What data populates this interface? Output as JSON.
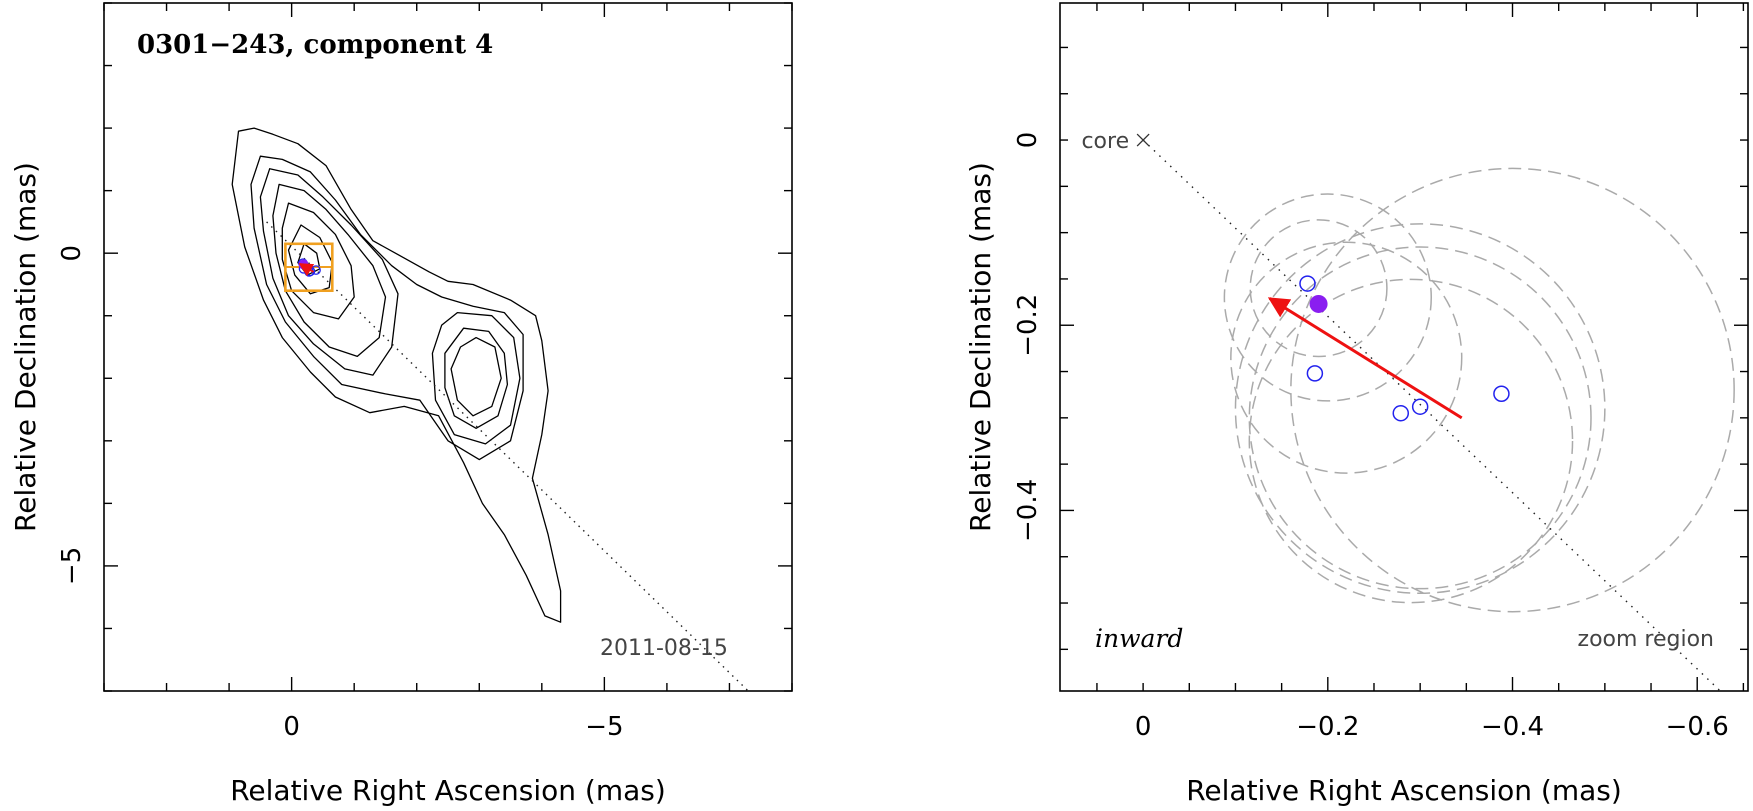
{
  "chart_data": [
    {
      "type": "contour",
      "title": "0301−243, component 4",
      "xlabel": "Relative Right Ascension (mas)",
      "ylabel": "Relative Declination (mas)",
      "xlim": [
        3.0,
        -8.0
      ],
      "ylim": [
        -7.0,
        4.0
      ],
      "xticks": [
        {
          "v": 0,
          "label": "0"
        },
        {
          "v": -5,
          "label": "−5"
        }
      ],
      "yticks": [
        {
          "v": 0,
          "label": "0"
        },
        {
          "v": -5,
          "label": "−5"
        }
      ],
      "minor_step": 1,
      "date": "2011-08-15",
      "contours": [
        [
          [
            0.85,
            1.95
          ],
          [
            0.6,
            2.0
          ],
          [
            0.3,
            1.9
          ],
          [
            -0.1,
            1.75
          ],
          [
            -0.55,
            1.4
          ],
          [
            -0.95,
            0.7
          ],
          [
            -1.3,
            0.2
          ],
          [
            -1.75,
            -0.05
          ],
          [
            -2.2,
            -0.3
          ],
          [
            -2.5,
            -0.45
          ],
          [
            -2.9,
            -0.5
          ],
          [
            -3.5,
            -0.75
          ],
          [
            -3.9,
            -1.0
          ],
          [
            -4.0,
            -1.4
          ],
          [
            -4.1,
            -2.2
          ],
          [
            -4.0,
            -2.9
          ],
          [
            -3.85,
            -3.6
          ],
          [
            -4.1,
            -4.5
          ],
          [
            -4.3,
            -5.4
          ],
          [
            -4.3,
            -5.9
          ],
          [
            -4.05,
            -5.8
          ],
          [
            -3.75,
            -5.15
          ],
          [
            -3.4,
            -4.5
          ],
          [
            -3.05,
            -4.0
          ],
          [
            -2.75,
            -3.35
          ],
          [
            -2.35,
            -2.6
          ],
          [
            -1.8,
            -2.45
          ],
          [
            -1.25,
            -2.55
          ],
          [
            -0.7,
            -2.3
          ],
          [
            -0.3,
            -1.9
          ],
          [
            0.15,
            -1.35
          ],
          [
            0.45,
            -0.75
          ],
          [
            0.75,
            0.1
          ],
          [
            0.95,
            1.1
          ],
          [
            0.85,
            1.95
          ]
        ],
        [
          [
            0.5,
            1.55
          ],
          [
            0.15,
            1.5
          ],
          [
            -0.3,
            1.3
          ],
          [
            -0.7,
            0.85
          ],
          [
            -1.1,
            0.3
          ],
          [
            -1.6,
            -0.2
          ],
          [
            -2.0,
            -0.5
          ],
          [
            -2.4,
            -0.7
          ],
          [
            -2.9,
            -0.85
          ],
          [
            -3.4,
            -0.95
          ],
          [
            -3.7,
            -1.3
          ],
          [
            -3.7,
            -2.2
          ],
          [
            -3.5,
            -3.0
          ],
          [
            -3.0,
            -3.3
          ],
          [
            -2.5,
            -3.0
          ],
          [
            -2.05,
            -2.35
          ],
          [
            -1.5,
            -2.25
          ],
          [
            -0.8,
            -2.1
          ],
          [
            -0.35,
            -1.65
          ],
          [
            0.1,
            -1.1
          ],
          [
            0.4,
            -0.5
          ],
          [
            0.6,
            0.4
          ],
          [
            0.65,
            1.1
          ],
          [
            0.5,
            1.55
          ]
        ],
        [
          [
            0.35,
            1.35
          ],
          [
            -0.1,
            1.25
          ],
          [
            -0.5,
            0.9
          ],
          [
            -0.95,
            0.45
          ],
          [
            -1.45,
            -0.1
          ],
          [
            -1.7,
            -0.65
          ],
          [
            -1.6,
            -1.5
          ],
          [
            -1.3,
            -1.95
          ],
          [
            -0.85,
            -1.85
          ],
          [
            -0.35,
            -1.45
          ],
          [
            0.05,
            -1.0
          ],
          [
            0.3,
            -0.4
          ],
          [
            0.45,
            0.35
          ],
          [
            0.5,
            0.9
          ],
          [
            0.35,
            1.35
          ]
        ],
        [
          [
            0.2,
            1.1
          ],
          [
            -0.2,
            1.0
          ],
          [
            -0.55,
            0.7
          ],
          [
            -0.9,
            0.3
          ],
          [
            -1.3,
            -0.2
          ],
          [
            -1.5,
            -0.7
          ],
          [
            -1.4,
            -1.35
          ],
          [
            -1.05,
            -1.65
          ],
          [
            -0.6,
            -1.5
          ],
          [
            -0.2,
            -1.1
          ],
          [
            0.1,
            -0.6
          ],
          [
            0.25,
            0.0
          ],
          [
            0.3,
            0.6
          ],
          [
            0.2,
            1.1
          ]
        ],
        [
          [
            0.05,
            0.8
          ],
          [
            -0.35,
            0.65
          ],
          [
            -0.7,
            0.3
          ],
          [
            -0.95,
            -0.2
          ],
          [
            -1.0,
            -0.7
          ],
          [
            -0.75,
            -1.05
          ],
          [
            -0.35,
            -0.95
          ],
          [
            0.0,
            -0.6
          ],
          [
            0.15,
            -0.1
          ],
          [
            0.15,
            0.4
          ],
          [
            0.05,
            0.8
          ]
        ],
        [
          [
            -0.15,
            0.45
          ],
          [
            -0.45,
            0.25
          ],
          [
            -0.65,
            -0.15
          ],
          [
            -0.6,
            -0.55
          ],
          [
            -0.3,
            -0.65
          ],
          [
            -0.05,
            -0.35
          ],
          [
            0.05,
            0.05
          ],
          [
            -0.15,
            0.45
          ]
        ],
        [
          [
            -0.2,
            0.15
          ],
          [
            -0.4,
            0.0
          ],
          [
            -0.45,
            -0.25
          ],
          [
            -0.25,
            -0.35
          ],
          [
            -0.1,
            -0.15
          ],
          [
            -0.2,
            0.15
          ]
        ],
        [
          [
            -2.65,
            -0.95
          ],
          [
            -3.2,
            -1.0
          ],
          [
            -3.55,
            -1.35
          ],
          [
            -3.65,
            -2.0
          ],
          [
            -3.5,
            -2.75
          ],
          [
            -3.1,
            -3.05
          ],
          [
            -2.6,
            -2.9
          ],
          [
            -2.3,
            -2.35
          ],
          [
            -2.25,
            -1.6
          ],
          [
            -2.4,
            -1.15
          ],
          [
            -2.65,
            -0.95
          ]
        ],
        [
          [
            -2.75,
            -1.2
          ],
          [
            -3.15,
            -1.25
          ],
          [
            -3.4,
            -1.6
          ],
          [
            -3.45,
            -2.1
          ],
          [
            -3.3,
            -2.6
          ],
          [
            -2.95,
            -2.8
          ],
          [
            -2.6,
            -2.6
          ],
          [
            -2.45,
            -2.15
          ],
          [
            -2.45,
            -1.6
          ],
          [
            -2.75,
            -1.2
          ]
        ],
        [
          [
            -2.95,
            -1.35
          ],
          [
            -3.25,
            -1.5
          ],
          [
            -3.35,
            -2.0
          ],
          [
            -3.2,
            -2.45
          ],
          [
            -2.9,
            -2.6
          ],
          [
            -2.65,
            -2.35
          ],
          [
            -2.55,
            -1.85
          ],
          [
            -2.7,
            -1.5
          ],
          [
            -2.95,
            -1.35
          ]
        ]
      ],
      "core_line": [
        [
          0.4,
          0.5
        ],
        [
          -7.3,
          -7.0
        ]
      ],
      "zoom_box": {
        "x": [
          0.1,
          -0.65
        ],
        "y": [
          0.15,
          -0.6
        ]
      },
      "points": [
        {
          "x": -0.18,
          "y": -0.16
        },
        {
          "x": -0.19,
          "y": -0.25
        },
        {
          "x": -0.28,
          "y": -0.3
        },
        {
          "x": -0.3,
          "y": -0.29
        },
        {
          "x": -0.39,
          "y": -0.27
        }
      ],
      "point_filled": {
        "x": -0.19,
        "y": -0.18
      },
      "arrow": {
        "from": [
          -0.35,
          -0.3
        ],
        "to": [
          -0.13,
          -0.17
        ]
      }
    },
    {
      "type": "scatter",
      "xlabel": "Relative Right Ascension (mas)",
      "ylabel": "Relative Declination (mas)",
      "xlim": [
        0.09,
        -0.655
      ],
      "ylim": [
        -0.595,
        0.148
      ],
      "xticks": [
        {
          "v": 0,
          "label": "0"
        },
        {
          "v": -0.2,
          "label": "−0.2"
        },
        {
          "v": -0.4,
          "label": "−0.4"
        },
        {
          "v": -0.6,
          "label": "−0.6"
        }
      ],
      "yticks": [
        {
          "v": 0,
          "label": "0"
        },
        {
          "v": -0.2,
          "label": "−0.2"
        },
        {
          "v": -0.4,
          "label": "−0.4"
        }
      ],
      "minor_step": 0.05,
      "core": {
        "x": 0.0,
        "y": 0.0,
        "label": "core"
      },
      "core_line": [
        [
          0.0,
          0.0
        ],
        [
          -0.625,
          -0.595
        ]
      ],
      "circles": [
        {
          "x": -0.2,
          "y": -0.17,
          "r": 0.112
        },
        {
          "x": -0.19,
          "y": -0.16,
          "r": 0.074
        },
        {
          "x": -0.22,
          "y": -0.235,
          "r": 0.125
        },
        {
          "x": -0.29,
          "y": -0.325,
          "r": 0.175
        },
        {
          "x": -0.3,
          "y": -0.29,
          "r": 0.2
        },
        {
          "x": -0.3,
          "y": -0.3,
          "r": 0.185
        },
        {
          "x": -0.4,
          "y": -0.27,
          "r": 0.24
        }
      ],
      "points": [
        {
          "x": -0.178,
          "y": -0.155
        },
        {
          "x": -0.186,
          "y": -0.252
        },
        {
          "x": -0.279,
          "y": -0.295
        },
        {
          "x": -0.3,
          "y": -0.288
        },
        {
          "x": -0.388,
          "y": -0.274
        }
      ],
      "point_filled": {
        "x": -0.19,
        "y": -0.177
      },
      "arrow": {
        "from": [
          -0.345,
          -0.3
        ],
        "to": [
          -0.137,
          -0.171
        ]
      },
      "label_left": "inward",
      "label_right": "zoom region"
    }
  ],
  "colors": {
    "axis": "#000000",
    "contour": "#000000",
    "point": "#2222ee",
    "filled_point": "#8a1ef0",
    "arrow": "#ee1111",
    "box": "#f0a020",
    "circle": "#aaaaaa",
    "core_line": "#222222"
  }
}
